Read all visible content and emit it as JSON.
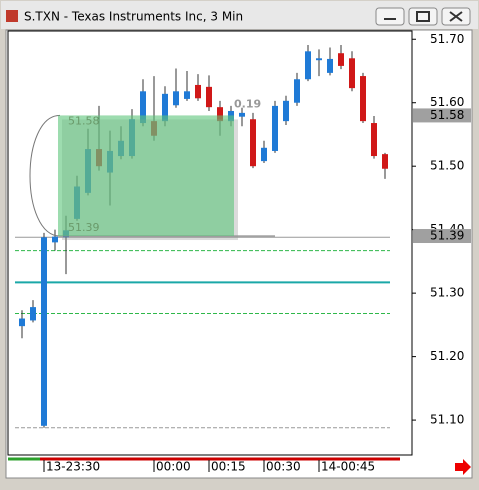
{
  "chart_data": {
    "type": "candlestick",
    "title": "S.TXN - Texas Instruments Inc, 3 Min",
    "categories": [
      null,
      null,
      "13-23:30",
      null,
      null,
      null,
      null,
      null,
      null,
      null,
      null,
      null,
      "00:00",
      null,
      null,
      null,
      null,
      "00:15",
      null,
      null,
      null,
      null,
      "00:30",
      null,
      null,
      null,
      null,
      "14-00:45",
      null,
      null,
      null,
      null,
      null,
      null
    ],
    "open": [
      51.248,
      51.257,
      51.091,
      51.38,
      51.388,
      51.417,
      51.458,
      51.527,
      51.49,
      51.516,
      51.516,
      51.568,
      51.571,
      51.571,
      51.596,
      51.606,
      51.628,
      51.625,
      51.593,
      51.571,
      51.578,
      51.574,
      51.508,
      51.524,
      51.571,
      51.6,
      51.637,
      51.667,
      51.647,
      51.678,
      51.67,
      51.642,
      51.568,
      51.519
    ],
    "high": [
      51.273,
      51.289,
      51.395,
      51.4,
      51.422,
      51.485,
      51.559,
      51.595,
      51.556,
      51.563,
      51.59,
      51.637,
      51.642,
      51.626,
      51.654,
      51.65,
      51.645,
      51.643,
      51.603,
      51.595,
      51.592,
      51.584,
      51.54,
      51.603,
      51.611,
      51.647,
      51.691,
      51.684,
      51.687,
      51.691,
      51.681,
      51.647,
      51.579,
      51.521
    ],
    "low": [
      51.229,
      51.254,
      51.088,
      51.367,
      51.33,
      51.414,
      51.454,
      51.493,
      51.438,
      51.511,
      51.512,
      51.563,
      51.54,
      51.563,
      51.592,
      51.603,
      51.603,
      51.587,
      51.548,
      51.563,
      51.563,
      51.497,
      51.505,
      51.521,
      51.565,
      51.595,
      51.634,
      51.642,
      51.643,
      51.653,
      51.618,
      51.568,
      51.512,
      51.48
    ],
    "close": [
      51.26,
      51.278,
      51.388,
      51.389,
      51.399,
      51.468,
      51.527,
      51.5,
      51.524,
      51.54,
      51.574,
      51.618,
      51.548,
      51.614,
      51.618,
      51.618,
      51.607,
      51.593,
      51.571,
      51.587,
      51.584,
      51.5,
      51.529,
      51.595,
      51.603,
      51.637,
      51.681,
      51.67,
      51.669,
      51.658,
      51.623,
      51.571,
      51.516,
      51.496
    ],
    "up_color": "#1f7ad6",
    "down_color": "#d01818",
    "ylim": [
      51.045,
      51.713
    ],
    "yticks": [
      {
        "value": 51.1,
        "label": "51.10"
      },
      {
        "value": 51.2,
        "label": "51.20"
      },
      {
        "value": 51.3,
        "label": "51.30"
      },
      {
        "value": 51.4,
        "label": "51.40"
      },
      {
        "value": 51.5,
        "label": "51.50"
      },
      {
        "value": 51.6,
        "label": "51.60"
      },
      {
        "value": 51.7,
        "label": "51.70"
      }
    ],
    "hlines": [
      {
        "value": 51.367,
        "color": "#2fb84a",
        "style": "dashed"
      },
      {
        "value": 51.268,
        "color": "#2fb84a",
        "style": "dashed"
      },
      {
        "value": 51.317,
        "color": "#1aa8a8",
        "style": "solid"
      },
      {
        "value": 51.088,
        "color": "#999999",
        "style": "dashed"
      },
      {
        "value": 51.388,
        "color": "#999999",
        "style": "solid"
      }
    ],
    "price_markers": [
      {
        "value": 51.58,
        "label": "51.58"
      },
      {
        "value": 51.39,
        "label": "51.39"
      }
    ],
    "measure_box": {
      "top": 51.58,
      "bottom": 51.39,
      "top_label": "51.58",
      "bottom_label": "51.39",
      "diff_label": "0.19",
      "color": "#5cc47a"
    }
  }
}
